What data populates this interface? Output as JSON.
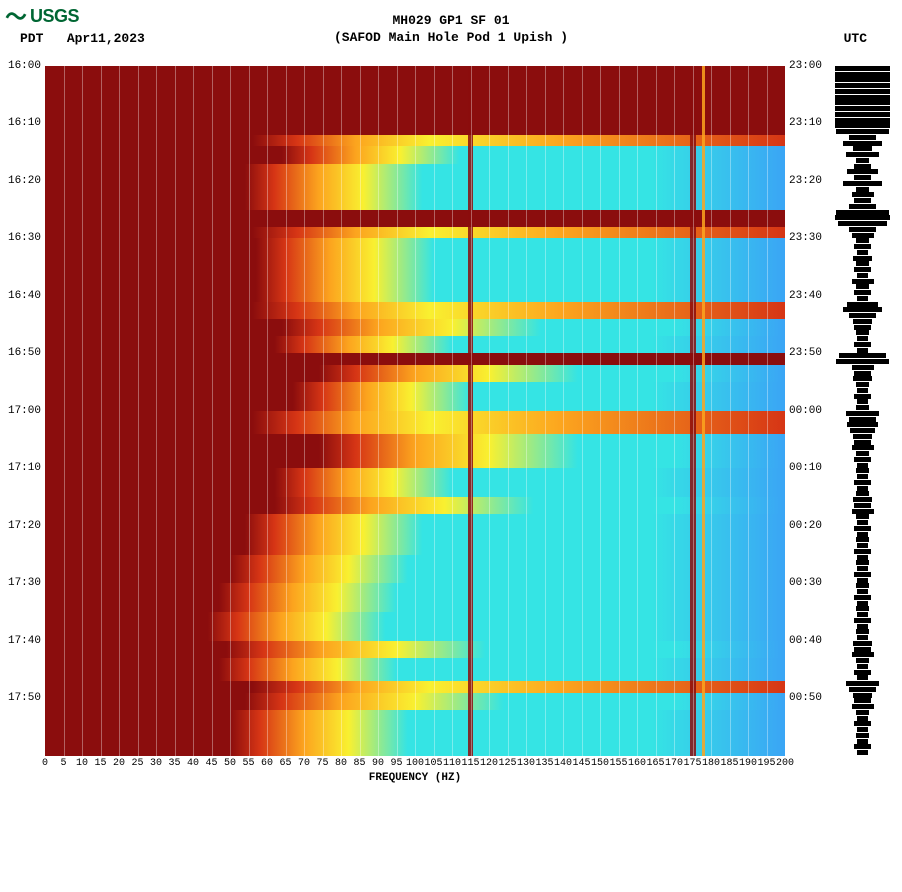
{
  "logo_text": "USGS",
  "title_line1": "MH029 GP1 SF 01",
  "title_line2": "(SAFOD Main Hole Pod 1 Upish )",
  "left_tz": "PDT",
  "date": "Apr11,2023",
  "right_tz": "UTC",
  "xlabel": "FREQUENCY (HZ)",
  "spectrogram": {
    "type": "heatmap",
    "x_range": [
      0,
      200
    ],
    "y_range_minutes": [
      0,
      120
    ],
    "left_ticks": [
      "16:00",
      "16:10",
      "16:20",
      "16:30",
      "16:40",
      "16:50",
      "17:00",
      "17:10",
      "17:20",
      "17:30",
      "17:40",
      "17:50"
    ],
    "right_ticks": [
      "23:00",
      "23:10",
      "23:20",
      "23:30",
      "23:40",
      "23:50",
      "00:00",
      "00:10",
      "00:20",
      "00:30",
      "00:40",
      "00:50"
    ],
    "x_ticks": [
      0,
      5,
      10,
      15,
      20,
      25,
      30,
      35,
      40,
      45,
      50,
      55,
      60,
      65,
      70,
      75,
      80,
      85,
      90,
      95,
      100,
      105,
      110,
      115,
      120,
      125,
      130,
      135,
      140,
      145,
      150,
      155,
      160,
      165,
      170,
      175,
      180,
      185,
      190,
      195,
      200
    ],
    "gridline_step": 5,
    "colors": {
      "low": "#8b0d0d",
      "mid_low": "#d63515",
      "mid": "#fca41e",
      "mid_high": "#f9f030",
      "high": "#35e4e4",
      "peak": "#3aa5f5",
      "grid": "#ffffff",
      "text": "#000000",
      "logo": "#006633"
    },
    "low_freq_boundary": 55,
    "vertical_features": [
      {
        "freq": 115,
        "color": "#8b0d0d",
        "width": 5
      },
      {
        "freq": 175,
        "color": "#8b0d0d",
        "width": 6
      },
      {
        "freq": 178,
        "color": "#fca41e",
        "width": 3
      }
    ],
    "bands": [
      {
        "t0": 0,
        "t1": 12,
        "profile": "saturated"
      },
      {
        "t0": 12,
        "t1": 14,
        "profile": "hot"
      },
      {
        "t0": 14,
        "t1": 17,
        "profile": "cool",
        "edge": 72
      },
      {
        "t0": 17,
        "t1": 25,
        "profile": "cool",
        "edge": 62
      },
      {
        "t0": 25,
        "t1": 28,
        "profile": "saturated"
      },
      {
        "t0": 28,
        "t1": 30,
        "profile": "hot"
      },
      {
        "t0": 30,
        "t1": 41,
        "profile": "cool",
        "edge": 65
      },
      {
        "t0": 41,
        "t1": 44,
        "profile": "hot"
      },
      {
        "t0": 44,
        "t1": 47,
        "profile": "warm",
        "edge": 70
      },
      {
        "t0": 47,
        "t1": 50,
        "profile": "cool",
        "edge": 70
      },
      {
        "t0": 50,
        "t1": 52,
        "profile": "saturated"
      },
      {
        "t0": 52,
        "t1": 55,
        "profile": "warm",
        "edge": 80
      },
      {
        "t0": 55,
        "t1": 60,
        "profile": "cool",
        "edge": 75
      },
      {
        "t0": 60,
        "t1": 64,
        "profile": "hot"
      },
      {
        "t0": 64,
        "t1": 70,
        "profile": "warm",
        "edge": 80
      },
      {
        "t0": 70,
        "t1": 75,
        "profile": "cool",
        "edge": 70
      },
      {
        "t0": 75,
        "t1": 78,
        "profile": "warm",
        "edge": 68
      },
      {
        "t0": 78,
        "t1": 85,
        "profile": "cool",
        "edge": 62
      },
      {
        "t0": 85,
        "t1": 90,
        "profile": "cool",
        "edge": 58
      },
      {
        "t0": 90,
        "t1": 95,
        "profile": "cool",
        "edge": 55
      },
      {
        "t0": 95,
        "t1": 100,
        "profile": "cool",
        "edge": 52
      },
      {
        "t0": 100,
        "t1": 103,
        "profile": "warm",
        "edge": 55
      },
      {
        "t0": 103,
        "t1": 107,
        "profile": "cool",
        "edge": 55
      },
      {
        "t0": 107,
        "t1": 109,
        "profile": "hot"
      },
      {
        "t0": 109,
        "t1": 112,
        "profile": "warm",
        "edge": 60
      },
      {
        "t0": 112,
        "t1": 120,
        "profile": "cool",
        "edge": 58
      }
    ],
    "trace_segments": [
      {
        "t": 0,
        "a": 1.0
      },
      {
        "t": 1,
        "a": 1.0
      },
      {
        "t": 2,
        "a": 1.0
      },
      {
        "t": 3,
        "a": 1.0
      },
      {
        "t": 4,
        "a": 1.0
      },
      {
        "t": 5,
        "a": 1.0
      },
      {
        "t": 6,
        "a": 1.0
      },
      {
        "t": 7,
        "a": 1.0
      },
      {
        "t": 8,
        "a": 1.0
      },
      {
        "t": 9,
        "a": 1.0
      },
      {
        "t": 10,
        "a": 1.0
      },
      {
        "t": 11,
        "a": 0.95
      },
      {
        "t": 12,
        "a": 0.5
      },
      {
        "t": 13,
        "a": 0.7
      },
      {
        "t": 14,
        "a": 0.35
      },
      {
        "t": 15,
        "a": 0.6
      },
      {
        "t": 16,
        "a": 0.25
      },
      {
        "t": 17,
        "a": 0.3
      },
      {
        "t": 18,
        "a": 0.55
      },
      {
        "t": 19,
        "a": 0.3
      },
      {
        "t": 20,
        "a": 0.7
      },
      {
        "t": 21,
        "a": 0.25
      },
      {
        "t": 22,
        "a": 0.4
      },
      {
        "t": 23,
        "a": 0.3
      },
      {
        "t": 24,
        "a": 0.5
      },
      {
        "t": 25,
        "a": 0.95
      },
      {
        "t": 26,
        "a": 1.0
      },
      {
        "t": 27,
        "a": 0.9
      },
      {
        "t": 28,
        "a": 0.5
      },
      {
        "t": 29,
        "a": 0.4
      },
      {
        "t": 30,
        "a": 0.25
      },
      {
        "t": 31,
        "a": 0.3
      },
      {
        "t": 32,
        "a": 0.2
      },
      {
        "t": 33,
        "a": 0.35
      },
      {
        "t": 34,
        "a": 0.25
      },
      {
        "t": 35,
        "a": 0.3
      },
      {
        "t": 36,
        "a": 0.2
      },
      {
        "t": 37,
        "a": 0.4
      },
      {
        "t": 38,
        "a": 0.25
      },
      {
        "t": 39,
        "a": 0.3
      },
      {
        "t": 40,
        "a": 0.2
      },
      {
        "t": 41,
        "a": 0.55
      },
      {
        "t": 42,
        "a": 0.7
      },
      {
        "t": 43,
        "a": 0.5
      },
      {
        "t": 44,
        "a": 0.35
      },
      {
        "t": 45,
        "a": 0.3
      },
      {
        "t": 46,
        "a": 0.25
      },
      {
        "t": 47,
        "a": 0.2
      },
      {
        "t": 48,
        "a": 0.3
      },
      {
        "t": 49,
        "a": 0.2
      },
      {
        "t": 50,
        "a": 0.85
      },
      {
        "t": 51,
        "a": 0.95
      },
      {
        "t": 52,
        "a": 0.4
      },
      {
        "t": 53,
        "a": 0.3
      },
      {
        "t": 54,
        "a": 0.35
      },
      {
        "t": 55,
        "a": 0.25
      },
      {
        "t": 56,
        "a": 0.2
      },
      {
        "t": 57,
        "a": 0.3
      },
      {
        "t": 58,
        "a": 0.2
      },
      {
        "t": 59,
        "a": 0.25
      },
      {
        "t": 60,
        "a": 0.6
      },
      {
        "t": 61,
        "a": 0.5
      },
      {
        "t": 62,
        "a": 0.55
      },
      {
        "t": 63,
        "a": 0.45
      },
      {
        "t": 64,
        "a": 0.35
      },
      {
        "t": 65,
        "a": 0.3
      },
      {
        "t": 66,
        "a": 0.4
      },
      {
        "t": 67,
        "a": 0.25
      },
      {
        "t": 68,
        "a": 0.3
      },
      {
        "t": 69,
        "a": 0.2
      },
      {
        "t": 70,
        "a": 0.25
      },
      {
        "t": 71,
        "a": 0.2
      },
      {
        "t": 72,
        "a": 0.3
      },
      {
        "t": 73,
        "a": 0.2
      },
      {
        "t": 74,
        "a": 0.25
      },
      {
        "t": 75,
        "a": 0.35
      },
      {
        "t": 76,
        "a": 0.3
      },
      {
        "t": 77,
        "a": 0.4
      },
      {
        "t": 78,
        "a": 0.25
      },
      {
        "t": 79,
        "a": 0.2
      },
      {
        "t": 80,
        "a": 0.3
      },
      {
        "t": 81,
        "a": 0.2
      },
      {
        "t": 82,
        "a": 0.25
      },
      {
        "t": 83,
        "a": 0.2
      },
      {
        "t": 84,
        "a": 0.3
      },
      {
        "t": 85,
        "a": 0.2
      },
      {
        "t": 86,
        "a": 0.25
      },
      {
        "t": 87,
        "a": 0.2
      },
      {
        "t": 88,
        "a": 0.3
      },
      {
        "t": 89,
        "a": 0.2
      },
      {
        "t": 90,
        "a": 0.25
      },
      {
        "t": 91,
        "a": 0.2
      },
      {
        "t": 92,
        "a": 0.3
      },
      {
        "t": 93,
        "a": 0.2
      },
      {
        "t": 94,
        "a": 0.25
      },
      {
        "t": 95,
        "a": 0.2
      },
      {
        "t": 96,
        "a": 0.3
      },
      {
        "t": 97,
        "a": 0.2
      },
      {
        "t": 98,
        "a": 0.25
      },
      {
        "t": 99,
        "a": 0.2
      },
      {
        "t": 100,
        "a": 0.35
      },
      {
        "t": 101,
        "a": 0.3
      },
      {
        "t": 102,
        "a": 0.4
      },
      {
        "t": 103,
        "a": 0.25
      },
      {
        "t": 104,
        "a": 0.2
      },
      {
        "t": 105,
        "a": 0.3
      },
      {
        "t": 106,
        "a": 0.2
      },
      {
        "t": 107,
        "a": 0.6
      },
      {
        "t": 108,
        "a": 0.5
      },
      {
        "t": 109,
        "a": 0.35
      },
      {
        "t": 110,
        "a": 0.3
      },
      {
        "t": 111,
        "a": 0.4
      },
      {
        "t": 112,
        "a": 0.25
      },
      {
        "t": 113,
        "a": 0.2
      },
      {
        "t": 114,
        "a": 0.3
      },
      {
        "t": 115,
        "a": 0.2
      },
      {
        "t": 116,
        "a": 0.25
      },
      {
        "t": 117,
        "a": 0.2
      },
      {
        "t": 118,
        "a": 0.3
      },
      {
        "t": 119,
        "a": 0.2
      }
    ]
  }
}
